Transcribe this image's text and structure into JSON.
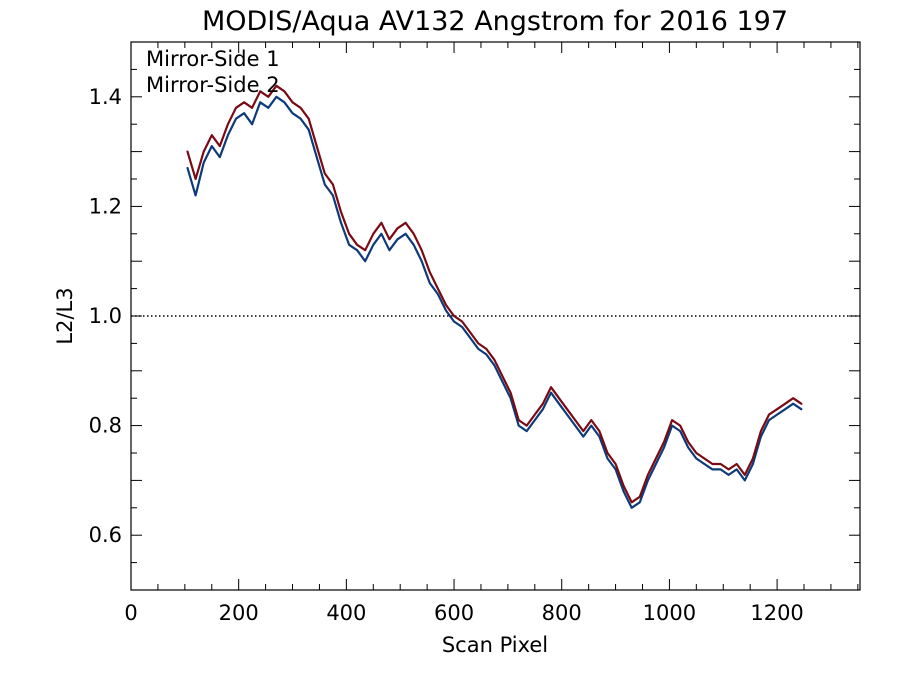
{
  "chart_data": {
    "type": "line",
    "title": "MODIS/Aqua AV132 Angstrom for 2016 197",
    "xlabel": "Scan Pixel",
    "ylabel": "L2/L3",
    "xlim": [
      0,
      1354
    ],
    "ylim": [
      0.5,
      1.5
    ],
    "xticks": [
      0,
      200,
      400,
      600,
      800,
      1000,
      1200
    ],
    "yticks": [
      0.6,
      0.8,
      1.0,
      1.2,
      1.4
    ],
    "xtick_labels": [
      "0",
      "200",
      "400",
      "600",
      "800",
      "1000",
      "1200"
    ],
    "ytick_labels": [
      "0.6",
      "0.8",
      "1.0",
      "1.2",
      "1.4"
    ],
    "reference_line": {
      "y": 1.0,
      "style": "dotted"
    },
    "legend_position": "top-left",
    "x": [
      105,
      120,
      135,
      150,
      165,
      180,
      195,
      210,
      225,
      240,
      255,
      270,
      285,
      300,
      315,
      330,
      345,
      360,
      375,
      390,
      405,
      420,
      435,
      450,
      465,
      480,
      495,
      510,
      525,
      540,
      555,
      570,
      585,
      600,
      615,
      630,
      645,
      660,
      675,
      690,
      705,
      720,
      735,
      750,
      765,
      780,
      795,
      810,
      825,
      840,
      855,
      870,
      885,
      900,
      915,
      930,
      945,
      960,
      975,
      990,
      1005,
      1020,
      1035,
      1050,
      1065,
      1080,
      1095,
      1110,
      1125,
      1140,
      1155,
      1170,
      1185,
      1200,
      1215,
      1230,
      1245
    ],
    "series": [
      {
        "name": "Mirror-Side 1",
        "color": "#0d3a7a",
        "values": [
          1.27,
          1.22,
          1.28,
          1.31,
          1.29,
          1.33,
          1.36,
          1.37,
          1.35,
          1.39,
          1.38,
          1.4,
          1.39,
          1.37,
          1.36,
          1.34,
          1.29,
          1.24,
          1.22,
          1.17,
          1.13,
          1.12,
          1.1,
          1.13,
          1.15,
          1.12,
          1.14,
          1.15,
          1.13,
          1.1,
          1.06,
          1.04,
          1.01,
          0.99,
          0.98,
          0.96,
          0.94,
          0.93,
          0.91,
          0.88,
          0.85,
          0.8,
          0.79,
          0.81,
          0.83,
          0.86,
          0.84,
          0.82,
          0.8,
          0.78,
          0.8,
          0.78,
          0.74,
          0.72,
          0.68,
          0.65,
          0.66,
          0.7,
          0.73,
          0.76,
          0.8,
          0.79,
          0.76,
          0.74,
          0.73,
          0.72,
          0.72,
          0.71,
          0.72,
          0.7,
          0.73,
          0.78,
          0.81,
          0.82,
          0.83,
          0.84,
          0.83
        ]
      },
      {
        "name": "Mirror-Side 2",
        "color": "#7a0a14",
        "values": [
          1.3,
          1.25,
          1.3,
          1.33,
          1.31,
          1.35,
          1.38,
          1.39,
          1.38,
          1.41,
          1.4,
          1.42,
          1.41,
          1.39,
          1.38,
          1.36,
          1.31,
          1.26,
          1.24,
          1.19,
          1.15,
          1.13,
          1.12,
          1.15,
          1.17,
          1.14,
          1.16,
          1.17,
          1.15,
          1.12,
          1.08,
          1.05,
          1.02,
          1.0,
          0.99,
          0.97,
          0.95,
          0.94,
          0.92,
          0.89,
          0.86,
          0.81,
          0.8,
          0.82,
          0.84,
          0.87,
          0.85,
          0.83,
          0.81,
          0.79,
          0.81,
          0.79,
          0.75,
          0.73,
          0.69,
          0.66,
          0.67,
          0.71,
          0.74,
          0.77,
          0.81,
          0.8,
          0.77,
          0.75,
          0.74,
          0.73,
          0.73,
          0.72,
          0.73,
          0.71,
          0.74,
          0.79,
          0.82,
          0.83,
          0.84,
          0.85,
          0.84
        ]
      }
    ]
  }
}
